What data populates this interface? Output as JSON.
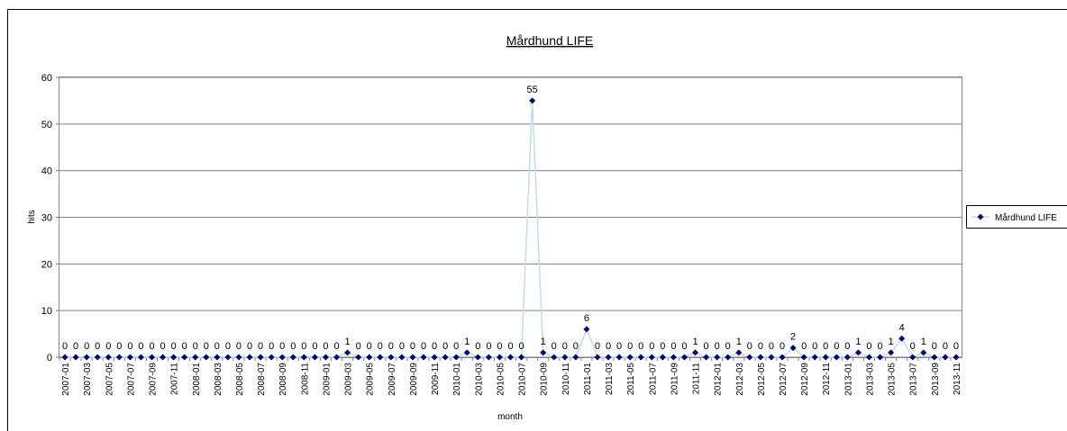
{
  "chart_data": {
    "type": "line",
    "title": "Mårdhund  LIFE",
    "x_label": "month",
    "y_label": "hits",
    "categories": [
      "2007-01",
      null,
      "2007-03",
      null,
      "2007-05",
      null,
      "2007-07",
      null,
      "2007-09",
      null,
      "2007-11",
      null,
      "2008-01",
      null,
      "2008-03",
      null,
      "2008-05",
      null,
      "2008-07",
      null,
      "2008-09",
      null,
      "2008-11",
      null,
      "2009-01",
      null,
      "2009-03",
      null,
      "2009-05",
      null,
      "2009-07",
      null,
      "2009-09",
      null,
      "2009-11",
      null,
      "2010-01",
      null,
      "2010-03",
      null,
      "2010-05",
      null,
      "2010-07",
      null,
      "2010-09",
      null,
      "2010-11",
      null,
      "2011-01",
      null,
      "2011-03",
      null,
      "2011-05",
      null,
      "2011-07",
      null,
      "2011-09",
      null,
      "2011-11",
      null,
      "2012-01",
      null,
      "2012-03",
      null,
      "2012-05",
      null,
      "2012-07",
      null,
      "2012-09",
      null,
      "2012-11",
      null,
      "2013-01",
      null,
      "2013-03",
      null,
      "2013-05",
      null,
      "2013-07",
      null,
      "2013-09",
      null,
      "2013-11"
    ],
    "series": [
      {
        "name": "Mårdhund LIFE",
        "color": "#000080",
        "line_color": "#c4daf0",
        "values": [
          0,
          0,
          0,
          0,
          0,
          0,
          0,
          0,
          0,
          0,
          0,
          0,
          0,
          0,
          0,
          0,
          0,
          0,
          0,
          0,
          0,
          0,
          0,
          0,
          0,
          0,
          1,
          0,
          0,
          0,
          0,
          0,
          0,
          0,
          0,
          0,
          0,
          1,
          0,
          0,
          0,
          0,
          0,
          55,
          1,
          0,
          0,
          0,
          6,
          0,
          0,
          0,
          0,
          0,
          0,
          0,
          0,
          0,
          1,
          0,
          0,
          0,
          1,
          0,
          0,
          0,
          0,
          2,
          0,
          0,
          0,
          0,
          0,
          1,
          0,
          0,
          1,
          4,
          0,
          1,
          0,
          0,
          0
        ]
      }
    ],
    "ylim": [
      0,
      60
    ],
    "yticks": [
      0,
      10,
      20,
      30,
      40,
      50,
      60
    ],
    "grid": true,
    "legend": "right"
  }
}
